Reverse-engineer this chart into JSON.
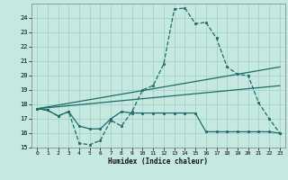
{
  "title": "",
  "xlabel": "Humidex (Indice chaleur)",
  "xlim": [
    -0.5,
    23.5
  ],
  "ylim": [
    15,
    25
  ],
  "yticks": [
    15,
    16,
    17,
    18,
    19,
    20,
    21,
    22,
    23,
    24
  ],
  "xticks": [
    0,
    1,
    2,
    3,
    4,
    5,
    6,
    7,
    8,
    9,
    10,
    11,
    12,
    13,
    14,
    15,
    16,
    17,
    18,
    19,
    20,
    21,
    22,
    23
  ],
  "bg_color": "#c5e8e0",
  "line_color": "#1e6b6b",
  "line1_x": [
    0,
    1,
    2,
    3,
    4,
    5,
    6,
    7,
    8,
    9,
    10,
    11,
    12,
    13,
    14,
    15,
    16,
    17,
    18,
    19,
    20,
    21,
    22,
    23
  ],
  "line1_y": [
    17.7,
    17.6,
    17.2,
    17.5,
    15.3,
    15.2,
    15.5,
    16.9,
    16.5,
    17.5,
    19.0,
    19.3,
    20.8,
    24.6,
    24.7,
    23.6,
    23.7,
    22.6,
    20.6,
    20.1,
    20.0,
    18.1,
    17.0,
    16.0
  ],
  "line2_x": [
    0,
    1,
    2,
    3,
    4,
    5,
    6,
    7,
    8,
    9,
    10,
    11,
    12,
    13,
    14,
    15,
    16,
    17,
    18,
    19,
    20,
    21,
    22,
    23
  ],
  "line2_y": [
    17.7,
    17.6,
    17.2,
    17.5,
    16.5,
    16.3,
    16.3,
    17.0,
    17.5,
    17.4,
    17.4,
    17.4,
    17.4,
    17.4,
    17.4,
    17.4,
    16.1,
    16.1,
    16.1,
    16.1,
    16.1,
    16.1,
    16.1,
    16.0
  ],
  "line3_x": [
    0,
    23
  ],
  "line3_y": [
    17.7,
    20.6
  ],
  "line4_x": [
    0,
    23
  ],
  "line4_y": [
    17.7,
    19.3
  ]
}
